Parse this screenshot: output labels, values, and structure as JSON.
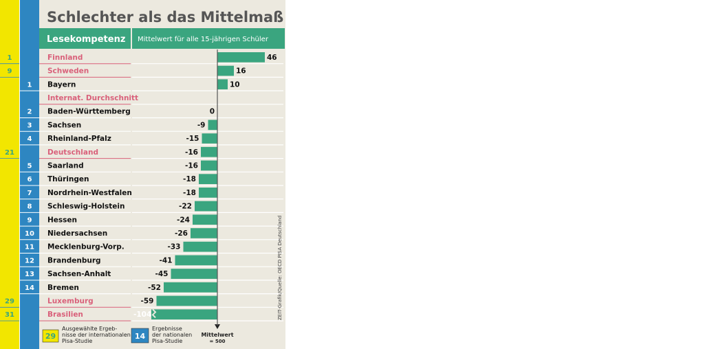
{
  "title": "Schlechter als das Mittelmaß",
  "header": {
    "left": "Lesekompetenz",
    "right": "Mittelwert für alle 15-jährigen Schüler"
  },
  "source": "ZEIT-Grafik/Quelle: OECD PISA Deutschland",
  "legend": {
    "intl_sample": "29",
    "intl_text": [
      "Ausgewählte Ergeb-",
      "nisse der internationalen",
      "Pisa-Studie"
    ],
    "nat_sample": "14",
    "nat_text": [
      "Ergebnisse",
      "der nationalen",
      "Pisa-Studie"
    ],
    "mean_label": "Mittelwert",
    "mean_value": "= 500"
  },
  "colors": {
    "yellow": "#f2e600",
    "blue": "#2e86c1",
    "green": "#3aa57f",
    "pink": "#d9607a",
    "panel": "#ece9df",
    "axis": "#555555"
  },
  "chart_data": {
    "type": "bar",
    "orientation": "horizontal",
    "title": "Schlechter als das Mittelmaß",
    "subtitle": "Lesekompetenz — Mittelwert für alle 15-jährigen Schüler",
    "baseline_note": "Mittelwert = 500",
    "xlim": [
      -104,
      46
    ],
    "rows": [
      {
        "label": "Finnland",
        "value": 46,
        "type": "intl",
        "rank": "1"
      },
      {
        "label": "Schweden",
        "value": 16,
        "type": "intl",
        "rank": "9"
      },
      {
        "label": "Bayern",
        "value": 10,
        "type": "nat",
        "rank": "1"
      },
      {
        "label": "Internat. Durchschnitt",
        "value": null,
        "type": "intl",
        "rank": ""
      },
      {
        "label": "Baden-Württemberg",
        "value": 0,
        "type": "nat",
        "rank": "2"
      },
      {
        "label": "Sachsen",
        "value": -9,
        "type": "nat",
        "rank": "3"
      },
      {
        "label": "Rheinland-Pfalz",
        "value": -15,
        "type": "nat",
        "rank": "4"
      },
      {
        "label": "Deutschland",
        "value": -16,
        "type": "intl",
        "rank": "21"
      },
      {
        "label": "Saarland",
        "value": -16,
        "type": "nat",
        "rank": "5"
      },
      {
        "label": "Thüringen",
        "value": -18,
        "type": "nat",
        "rank": "6"
      },
      {
        "label": "Nordrhein-Westfalen",
        "value": -18,
        "type": "nat",
        "rank": "7"
      },
      {
        "label": "Schleswig-Holstein",
        "value": -22,
        "type": "nat",
        "rank": "8"
      },
      {
        "label": "Hessen",
        "value": -24,
        "type": "nat",
        "rank": "9"
      },
      {
        "label": "Niedersachsen",
        "value": -26,
        "type": "nat",
        "rank": "10"
      },
      {
        "label": "Mecklenburg-Vorp.",
        "value": -33,
        "type": "nat",
        "rank": "11"
      },
      {
        "label": "Brandenburg",
        "value": -41,
        "type": "nat",
        "rank": "12"
      },
      {
        "label": "Sachsen-Anhalt",
        "value": -45,
        "type": "nat",
        "rank": "13"
      },
      {
        "label": "Bremen",
        "value": -52,
        "type": "nat",
        "rank": "14"
      },
      {
        "label": "Luxemburg",
        "value": -59,
        "type": "intl",
        "rank": "29"
      },
      {
        "label": "Brasilien",
        "value": -104,
        "type": "intl",
        "rank": "31",
        "truncated": true
      }
    ]
  }
}
